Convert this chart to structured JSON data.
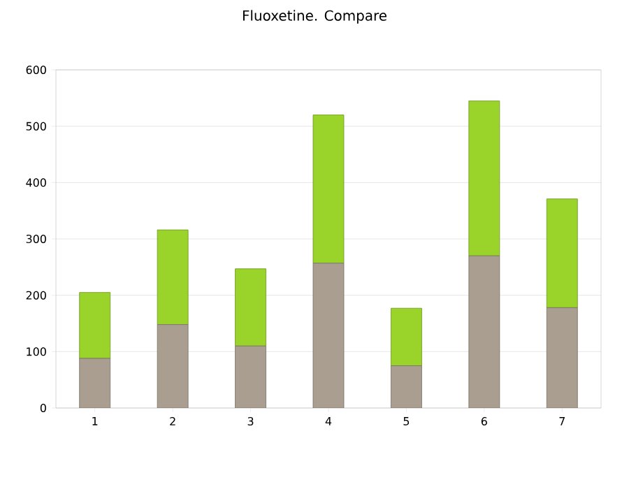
{
  "chart_data": {
    "type": "bar",
    "title": "Fluoxetine. Compare",
    "stacked": true,
    "categories": [
      "1",
      "2",
      "3",
      "4",
      "5",
      "6",
      "7"
    ],
    "series": [
      {
        "color": "#a99e90",
        "values": [
          88,
          148,
          110,
          257,
          75,
          270,
          178
        ]
      },
      {
        "color": "#9ad42a",
        "values": [
          117,
          168,
          137,
          263,
          102,
          275,
          193
        ]
      }
    ],
    "ylim": [
      0,
      600
    ],
    "yticks": [
      0,
      100,
      200,
      300,
      400,
      500,
      600
    ],
    "grid": "y"
  }
}
